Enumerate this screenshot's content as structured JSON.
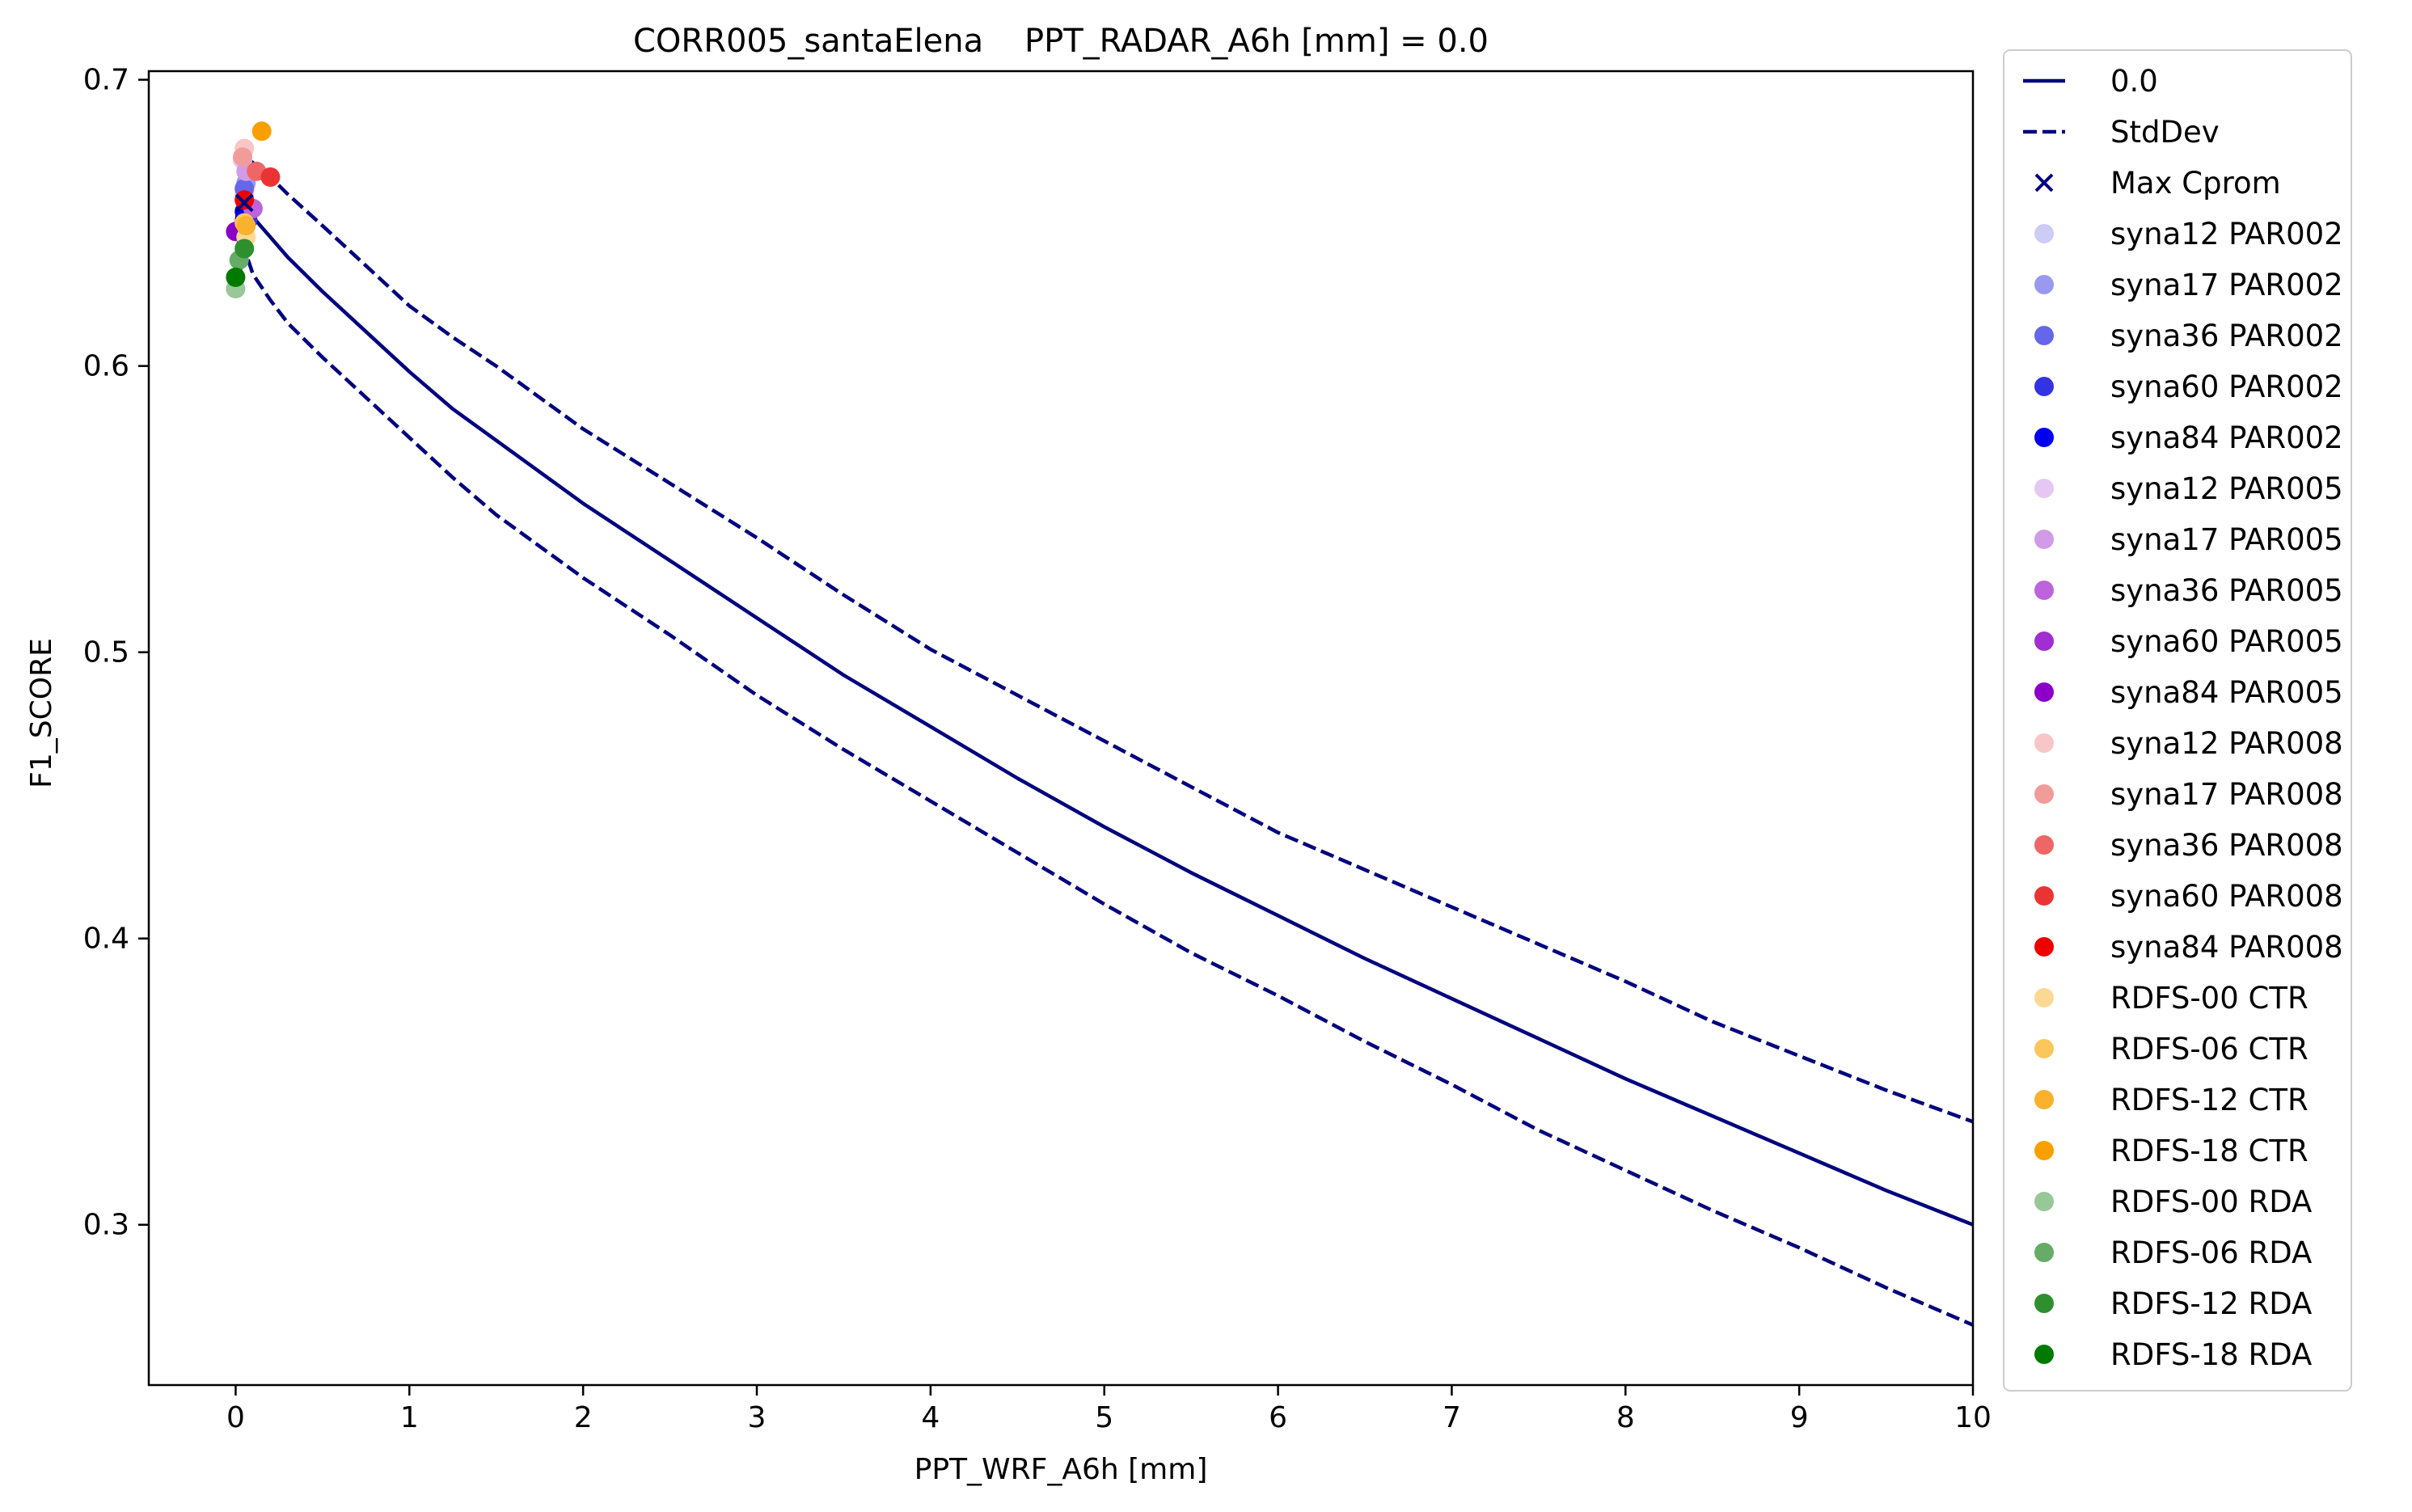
{
  "chart_data": {
    "type": "line",
    "title": "CORR005_santaElena    PPT_RADAR_A6h [mm] = 0.0",
    "xlabel": "PPT_WRF_A6h [mm]",
    "ylabel": "F1_SCORE",
    "xlim": [
      -0.5,
      10
    ],
    "ylim": [
      0.244,
      0.703
    ],
    "xticks": [
      0,
      1,
      2,
      3,
      4,
      5,
      6,
      7,
      8,
      9,
      10
    ],
    "xtick_labels": [
      "0",
      "1",
      "2",
      "3",
      "4",
      "5",
      "6",
      "7",
      "8",
      "9",
      "10"
    ],
    "yticks": [
      0.3,
      0.4,
      0.5,
      0.6,
      0.7
    ],
    "ytick_labels": [
      "0.3",
      "0.4",
      "0.5",
      "0.6",
      "0.7"
    ],
    "grid": false,
    "legend_position": "outside-right",
    "line_color": "#00007f",
    "series": [
      {
        "name": "0.0",
        "style": "solid",
        "x": [
          0,
          0.05,
          0.1,
          0.2,
          0.3,
          0.5,
          0.75,
          1.0,
          1.25,
          1.5,
          2.0,
          2.5,
          3.0,
          3.5,
          4.0,
          4.5,
          5.0,
          5.5,
          6.0,
          6.5,
          7.0,
          7.5,
          8.0,
          8.5,
          9.0,
          9.5,
          10.0
        ],
        "y": [
          0.636,
          0.657,
          0.652,
          0.645,
          0.638,
          0.626,
          0.612,
          0.598,
          0.585,
          0.574,
          0.552,
          0.532,
          0.512,
          0.492,
          0.474,
          0.456,
          0.439,
          0.423,
          0.408,
          0.393,
          0.379,
          0.365,
          0.351,
          0.338,
          0.325,
          0.312,
          0.3
        ]
      },
      {
        "name": "StdDev",
        "style": "dashed",
        "x": [
          0,
          0.05,
          0.1,
          0.2,
          0.3,
          0.5,
          0.75,
          1.0,
          1.25,
          1.5,
          2.0,
          2.5,
          3.0,
          3.5,
          4.0,
          4.5,
          5.0,
          5.5,
          6.0,
          6.5,
          7.0,
          7.5,
          8.0,
          8.5,
          9.0,
          9.5,
          10.0
        ],
        "y": [
          0.648,
          0.673,
          0.671,
          0.666,
          0.66,
          0.649,
          0.635,
          0.621,
          0.61,
          0.6,
          0.578,
          0.559,
          0.54,
          0.52,
          0.501,
          0.485,
          0.469,
          0.453,
          0.437,
          0.424,
          0.411,
          0.398,
          0.385,
          0.371,
          0.359,
          0.347,
          0.336
        ]
      },
      {
        "name": "",
        "style": "dashed",
        "x": [
          0,
          0.05,
          0.1,
          0.2,
          0.3,
          0.5,
          0.75,
          1.0,
          1.25,
          1.5,
          2.0,
          2.5,
          3.0,
          3.5,
          4.0,
          4.5,
          5.0,
          5.5,
          6.0,
          6.5,
          7.0,
          7.5,
          8.0,
          8.5,
          9.0,
          9.5,
          10.0
        ],
        "y": [
          0.625,
          0.641,
          0.632,
          0.623,
          0.615,
          0.603,
          0.589,
          0.575,
          0.561,
          0.548,
          0.526,
          0.506,
          0.485,
          0.466,
          0.448,
          0.43,
          0.412,
          0.395,
          0.38,
          0.364,
          0.349,
          0.333,
          0.319,
          0.305,
          0.292,
          0.278,
          0.265
        ]
      }
    ],
    "max_cprom": {
      "name": "Max Cprom",
      "x": 0.05,
      "y": 0.657,
      "color": "#00007f"
    },
    "scatter": [
      {
        "name": "syna12 PAR002",
        "color": "#ccccf7",
        "x": 0.05,
        "y": 0.66
      },
      {
        "name": "syna17 PAR002",
        "color": "#9999f0",
        "x": 0.06,
        "y": 0.664
      },
      {
        "name": "syna36 PAR002",
        "color": "#6666ea",
        "x": 0.05,
        "y": 0.662
      },
      {
        "name": "syna60 PAR002",
        "color": "#3333e3",
        "x": 0.07,
        "y": 0.651
      },
      {
        "name": "syna84 PAR002",
        "color": "#0000ee",
        "x": 0.05,
        "y": 0.654
      },
      {
        "name": "syna12 PAR005",
        "color": "#e4c8f3",
        "x": 0.04,
        "y": 0.672
      },
      {
        "name": "syna17 PAR005",
        "color": "#d19be8",
        "x": 0.06,
        "y": 0.668
      },
      {
        "name": "syna36 PAR005",
        "color": "#bd63dd",
        "x": 0.1,
        "y": 0.655
      },
      {
        "name": "syna60 PAR005",
        "color": "#a12ed0",
        "x": 0.01,
        "y": 0.647
      },
      {
        "name": "syna84 PAR005",
        "color": "#8b00c9",
        "x": 0.0,
        "y": 0.647
      },
      {
        "name": "syna12 PAR008",
        "color": "#f8c6c6",
        "x": 0.05,
        "y": 0.676
      },
      {
        "name": "syna17 PAR008",
        "color": "#f29b9b",
        "x": 0.04,
        "y": 0.673
      },
      {
        "name": "syna36 PAR008",
        "color": "#ee6666",
        "x": 0.12,
        "y": 0.668
      },
      {
        "name": "syna60 PAR008",
        "color": "#ec3333",
        "x": 0.2,
        "y": 0.666
      },
      {
        "name": "syna84 PAR008",
        "color": "#ee0000",
        "x": 0.05,
        "y": 0.658
      },
      {
        "name": "RDFS-00 CTR",
        "color": "#fbd894",
        "x": 0.06,
        "y": 0.645
      },
      {
        "name": "RDFS-06 CTR",
        "color": "#fbc65c",
        "x": 0.05,
        "y": 0.65
      },
      {
        "name": "RDFS-12 CTR",
        "color": "#fab12e",
        "x": 0.06,
        "y": 0.649
      },
      {
        "name": "RDFS-18 CTR",
        "color": "#f9a000",
        "x": 0.15,
        "y": 0.682
      },
      {
        "name": "RDFS-00 RDA",
        "color": "#98c798",
        "x": 0.0,
        "y": 0.627
      },
      {
        "name": "RDFS-06 RDA",
        "color": "#66ab66",
        "x": 0.02,
        "y": 0.637
      },
      {
        "name": "RDFS-12 RDA",
        "color": "#2e8f2e",
        "x": 0.05,
        "y": 0.641
      },
      {
        "name": "RDFS-18 RDA",
        "color": "#007a00",
        "x": 0.0,
        "y": 0.631
      }
    ]
  }
}
